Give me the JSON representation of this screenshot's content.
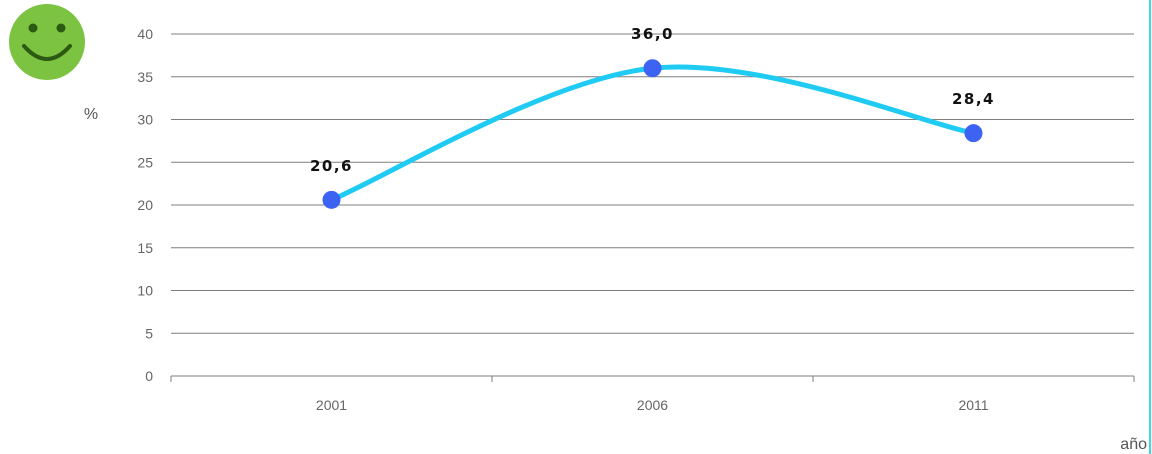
{
  "colors": {
    "line": "#1fcbf2",
    "marker": "#3d63f2",
    "grid": "#7f7f7f",
    "smiley_face": "#7cc342",
    "smiley_features": "#2d5a12",
    "right_edge": "#3fd6e8"
  },
  "icon": "smiley-face-icon",
  "chart_data": {
    "type": "line",
    "categories": [
      "2001",
      "2006",
      "2011"
    ],
    "series": [
      {
        "values": [
          20.6,
          36.0,
          28.4
        ],
        "labels": [
          "20,6",
          "36,0",
          "28,4"
        ]
      }
    ],
    "ylabel": "%",
    "xlabel": "año",
    "ylim": [
      0,
      40
    ],
    "yticks": [
      "0",
      "5",
      "10",
      "15",
      "20",
      "25",
      "30",
      "35",
      "40"
    ],
    "smooth": true,
    "grid": true,
    "legend": "none"
  }
}
